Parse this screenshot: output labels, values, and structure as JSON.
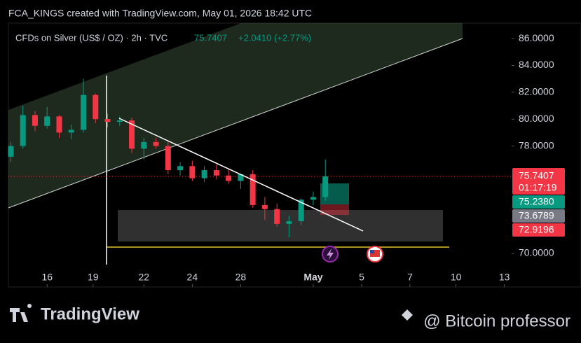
{
  "header": "FCA_KINGS created with TradingView.com, May 01, 2026 18:42 UTC",
  "chart_data": {
    "type": "candlestick",
    "title": "CFDs on Silver (US$ / OZ) · 2h · TVC",
    "last_price": "75.7407",
    "change": "+2.0410 (+2.77%)",
    "x": [
      -1.5,
      -1,
      -0.5,
      0,
      0.5,
      1,
      1.5,
      2,
      2.5,
      3,
      3.5,
      4,
      4.5,
      5,
      5.5,
      6,
      6.5,
      7,
      7.5,
      8,
      8.5,
      9,
      9.5,
      10,
      10.5,
      11,
      11.5
    ],
    "open": [
      77.2,
      78.0,
      80.3,
      79.5,
      80.2,
      79.0,
      79.2,
      81.8,
      80.0,
      79.8,
      79.9,
      77.8,
      78.3,
      78.0,
      76.2,
      76.5,
      75.6,
      76.2,
      75.8,
      75.4,
      75.9,
      73.6,
      73.3,
      72.2,
      72.4,
      74.0,
      74.2
    ],
    "high": [
      78.3,
      81.0,
      80.6,
      80.9,
      80.3,
      79.6,
      83.0,
      81.9,
      80.4,
      80.2,
      80.1,
      78.6,
      78.6,
      78.4,
      76.8,
      76.9,
      76.5,
      76.6,
      76.3,
      75.8,
      76.2,
      74.2,
      73.7,
      72.8,
      74.1,
      74.6,
      77.0
    ],
    "low": [
      76.8,
      77.8,
      79.1,
      79.3,
      78.6,
      78.5,
      79.0,
      79.7,
      79.4,
      79.5,
      77.5,
      77.0,
      77.8,
      75.9,
      75.8,
      75.4,
      75.3,
      75.5,
      75.2,
      74.8,
      73.4,
      72.5,
      72.0,
      71.2,
      72.1,
      73.6,
      73.9
    ],
    "close": [
      78.0,
      80.3,
      79.5,
      80.2,
      79.0,
      79.2,
      81.8,
      80.0,
      79.8,
      79.9,
      77.8,
      78.3,
      78.0,
      76.2,
      76.5,
      75.6,
      76.2,
      75.8,
      75.4,
      75.9,
      73.6,
      73.3,
      72.2,
      72.4,
      74.0,
      74.2,
      75.74
    ],
    "up_color": "#089981",
    "down_color": "#f23645",
    "xlim": [
      -1.6,
      19.2
    ],
    "xticks": [
      {
        "value": 0,
        "label": "16"
      },
      {
        "value": 1.9,
        "label": "19"
      },
      {
        "value": 4,
        "label": "22"
      },
      {
        "value": 6,
        "label": "24"
      },
      {
        "value": 8,
        "label": "28"
      },
      {
        "value": 11,
        "label": "May"
      },
      {
        "value": 13,
        "label": "5"
      },
      {
        "value": 15,
        "label": "7"
      },
      {
        "value": 16.9,
        "label": "10"
      },
      {
        "value": 18.9,
        "label": "13"
      }
    ],
    "ylim": [
      67.5,
      87.15
    ],
    "yticks": [
      {
        "value": 86,
        "label": "86.0000"
      },
      {
        "value": 84,
        "label": "84.0000"
      },
      {
        "value": 82,
        "label": "82.0000"
      },
      {
        "value": 80,
        "label": "80.0000"
      },
      {
        "value": 78,
        "label": "78.0000"
      },
      {
        "value": 70,
        "label": "70.0000"
      }
    ],
    "price_labels": [
      "75.7407",
      "01:17:19",
      "75.2380",
      "73.6789",
      "72.9196"
    ]
  },
  "footer": {
    "brand": "TradingView",
    "author": "@ Bitcoin professor"
  }
}
